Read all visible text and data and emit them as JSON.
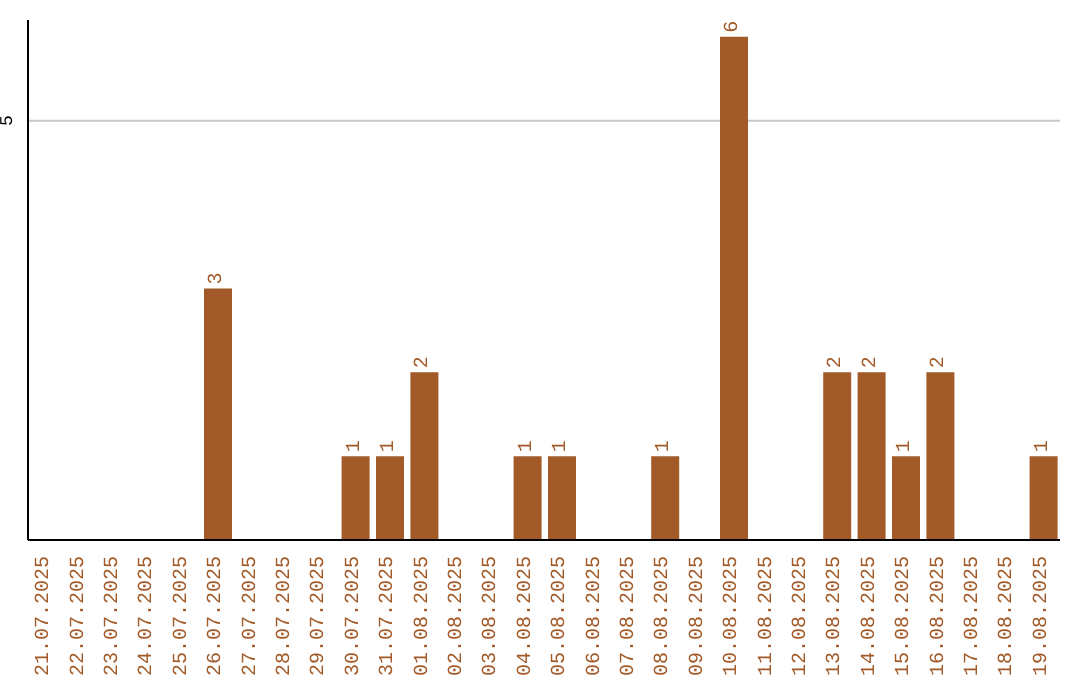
{
  "chart_data": {
    "type": "bar",
    "categories": [
      "21.07.2025",
      "22.07.2025",
      "23.07.2025",
      "24.07.2025",
      "25.07.2025",
      "26.07.2025",
      "27.07.2025",
      "28.07.2025",
      "29.07.2025",
      "30.07.2025",
      "31.07.2025",
      "01.08.2025",
      "02.08.2025",
      "03.08.2025",
      "04.08.2025",
      "05.08.2025",
      "06.08.2025",
      "07.08.2025",
      "08.08.2025",
      "09.08.2025",
      "10.08.2025",
      "11.08.2025",
      "12.08.2025",
      "13.08.2025",
      "14.08.2025",
      "15.08.2025",
      "16.08.2025",
      "17.08.2025",
      "18.08.2025",
      "19.08.2025"
    ],
    "values": [
      0,
      0,
      0,
      0,
      0,
      3,
      0,
      0,
      0,
      1,
      1,
      2,
      0,
      0,
      1,
      1,
      0,
      0,
      1,
      0,
      6,
      0,
      0,
      2,
      2,
      1,
      2,
      0,
      0,
      1
    ],
    "value_labels": [
      null,
      null,
      null,
      null,
      null,
      "3",
      null,
      null,
      null,
      "1",
      "1",
      "2",
      null,
      null,
      "1",
      "1",
      null,
      null,
      "1",
      null,
      "6",
      null,
      null,
      "2",
      "2",
      "1",
      "2",
      null,
      null,
      "1"
    ],
    "color": "#a15a28",
    "ylim": [
      0,
      6.2
    ],
    "yticks": [
      5
    ],
    "grid": "y"
  }
}
